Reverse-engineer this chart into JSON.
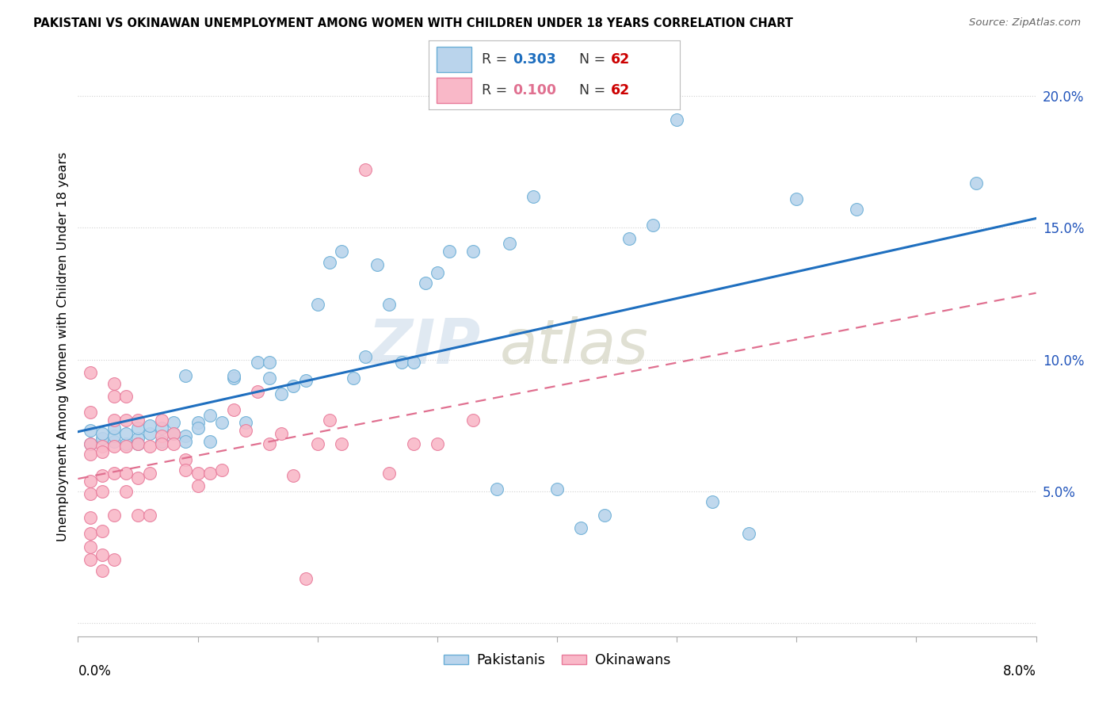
{
  "title": "PAKISTANI VS OKINAWAN UNEMPLOYMENT AMONG WOMEN WITH CHILDREN UNDER 18 YEARS CORRELATION CHART",
  "source": "Source: ZipAtlas.com",
  "ylabel": "Unemployment Among Women with Children Under 18 years",
  "xlim": [
    0.0,
    0.08
  ],
  "ylim": [
    -0.005,
    0.215
  ],
  "yticks": [
    0.0,
    0.05,
    0.1,
    0.15,
    0.2
  ],
  "ytick_labels": [
    "",
    "5.0%",
    "10.0%",
    "15.0%",
    "20.0%"
  ],
  "legend_r1_val": "0.303",
  "legend_n1_val": "62",
  "legend_r2_val": "0.100",
  "legend_n2_val": "62",
  "pakistani_fill": "#bad4ec",
  "pakistani_edge": "#6aaed6",
  "okinawan_fill": "#f9b8c8",
  "okinawan_edge": "#e87a9a",
  "pakistani_line_color": "#1f6fbf",
  "okinawan_line_color": "#e07090",
  "watermark_zip": "ZIP",
  "watermark_atlas": "atlas",
  "pakistani_x": [
    0.001,
    0.001,
    0.002,
    0.002,
    0.003,
    0.003,
    0.003,
    0.004,
    0.004,
    0.005,
    0.005,
    0.005,
    0.006,
    0.006,
    0.007,
    0.007,
    0.008,
    0.008,
    0.009,
    0.009,
    0.009,
    0.01,
    0.01,
    0.011,
    0.011,
    0.012,
    0.013,
    0.013,
    0.014,
    0.015,
    0.016,
    0.016,
    0.017,
    0.018,
    0.019,
    0.02,
    0.021,
    0.022,
    0.023,
    0.024,
    0.025,
    0.026,
    0.027,
    0.028,
    0.029,
    0.03,
    0.031,
    0.033,
    0.035,
    0.036,
    0.038,
    0.04,
    0.042,
    0.044,
    0.046,
    0.048,
    0.05,
    0.053,
    0.056,
    0.06,
    0.065,
    0.075
  ],
  "pakistani_y": [
    0.073,
    0.068,
    0.07,
    0.072,
    0.069,
    0.071,
    0.074,
    0.068,
    0.072,
    0.07,
    0.074,
    0.068,
    0.072,
    0.075,
    0.074,
    0.069,
    0.072,
    0.076,
    0.094,
    0.071,
    0.069,
    0.076,
    0.074,
    0.069,
    0.079,
    0.076,
    0.093,
    0.094,
    0.076,
    0.099,
    0.099,
    0.093,
    0.087,
    0.09,
    0.092,
    0.121,
    0.137,
    0.141,
    0.093,
    0.101,
    0.136,
    0.121,
    0.099,
    0.099,
    0.129,
    0.133,
    0.141,
    0.141,
    0.051,
    0.144,
    0.162,
    0.051,
    0.036,
    0.041,
    0.146,
    0.151,
    0.191,
    0.046,
    0.034,
    0.161,
    0.157,
    0.167
  ],
  "okinawan_x": [
    0.001,
    0.001,
    0.001,
    0.001,
    0.001,
    0.001,
    0.001,
    0.001,
    0.001,
    0.001,
    0.002,
    0.002,
    0.002,
    0.002,
    0.002,
    0.002,
    0.002,
    0.003,
    0.003,
    0.003,
    0.003,
    0.003,
    0.003,
    0.003,
    0.004,
    0.004,
    0.004,
    0.004,
    0.004,
    0.005,
    0.005,
    0.005,
    0.005,
    0.006,
    0.006,
    0.006,
    0.007,
    0.007,
    0.007,
    0.008,
    0.008,
    0.009,
    0.009,
    0.01,
    0.01,
    0.011,
    0.012,
    0.013,
    0.014,
    0.015,
    0.016,
    0.017,
    0.018,
    0.019,
    0.02,
    0.021,
    0.022,
    0.024,
    0.026,
    0.028,
    0.03,
    0.033
  ],
  "okinawan_y": [
    0.068,
    0.064,
    0.054,
    0.049,
    0.04,
    0.034,
    0.029,
    0.024,
    0.095,
    0.08,
    0.067,
    0.065,
    0.056,
    0.05,
    0.035,
    0.026,
    0.02,
    0.091,
    0.086,
    0.077,
    0.067,
    0.057,
    0.041,
    0.024,
    0.086,
    0.077,
    0.067,
    0.057,
    0.05,
    0.077,
    0.068,
    0.055,
    0.041,
    0.067,
    0.057,
    0.041,
    0.071,
    0.077,
    0.068,
    0.072,
    0.068,
    0.062,
    0.058,
    0.057,
    0.052,
    0.057,
    0.058,
    0.081,
    0.073,
    0.088,
    0.068,
    0.072,
    0.056,
    0.017,
    0.068,
    0.077,
    0.068,
    0.172,
    0.057,
    0.068,
    0.068,
    0.077
  ]
}
